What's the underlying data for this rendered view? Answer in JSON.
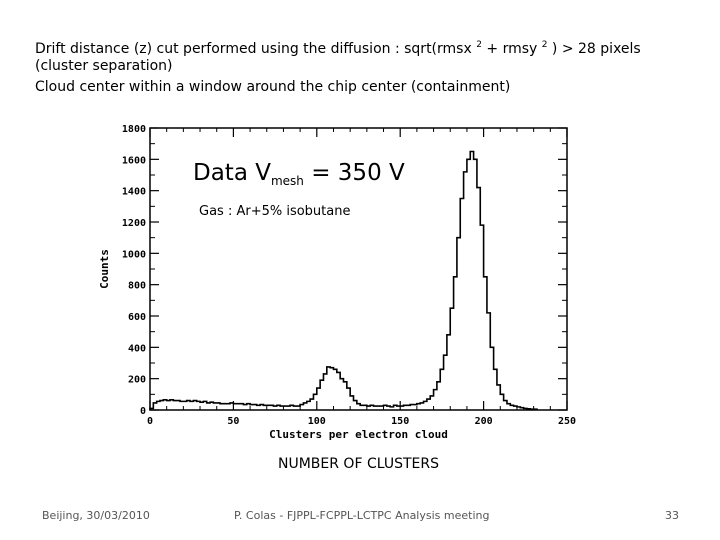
{
  "header": {
    "line1_pre": "Drift distance (z) cut performed using the diffusion : sqrt(rmsx ",
    "sup_a": "2",
    "line1_mid": " + rmsy ",
    "sup_b": "2",
    "line1_post": " ) > 28 pixels",
    "line2": "(cluster separation)",
    "line3": "Cloud center within a window around the chip center  (containment)"
  },
  "annotation": {
    "main_pre": "Data V",
    "main_sub": "mesh",
    "main_post": " = 350 V",
    "gas": "Gas : Ar+5% isobutane"
  },
  "caption": "NUMBER OF CLUSTERS",
  "footer": {
    "left": "Beijing, 30/03/2010",
    "center": "P. Colas  -  FJPPL-FCPPL-LCTPC Analysis meeting",
    "page": "33"
  },
  "chart_data": {
    "type": "histogram",
    "xlabel": "Clusters per electron cloud",
    "ylabel": "Counts",
    "xlim": [
      0,
      250
    ],
    "ylim": [
      0,
      1800
    ],
    "xticks": [
      "0",
      "50",
      "100",
      "150",
      "200",
      "250"
    ],
    "yticks": [
      "0",
      "200",
      "400",
      "600",
      "800",
      "1000",
      "1200",
      "1400",
      "1600",
      "1800"
    ],
    "bin_width": 2,
    "bins_start": 0,
    "counts": [
      10,
      45,
      55,
      60,
      65,
      60,
      65,
      60,
      60,
      55,
      55,
      60,
      55,
      60,
      55,
      50,
      55,
      45,
      50,
      45,
      45,
      40,
      40,
      40,
      45,
      40,
      40,
      40,
      35,
      40,
      35,
      35,
      30,
      35,
      30,
      30,
      30,
      25,
      30,
      25,
      25,
      25,
      30,
      25,
      25,
      35,
      45,
      55,
      70,
      100,
      140,
      190,
      230,
      275,
      270,
      260,
      240,
      200,
      180,
      140,
      90,
      60,
      40,
      30,
      30,
      25,
      30,
      25,
      25,
      25,
      30,
      25,
      20,
      30,
      25,
      25,
      30,
      30,
      35,
      35,
      40,
      45,
      55,
      70,
      90,
      130,
      180,
      260,
      350,
      480,
      650,
      850,
      1100,
      1350,
      1520,
      1600,
      1650,
      1600,
      1420,
      1180,
      850,
      620,
      400,
      260,
      160,
      100,
      60,
      40,
      30,
      25,
      20,
      15,
      10,
      8,
      5,
      5
    ]
  }
}
